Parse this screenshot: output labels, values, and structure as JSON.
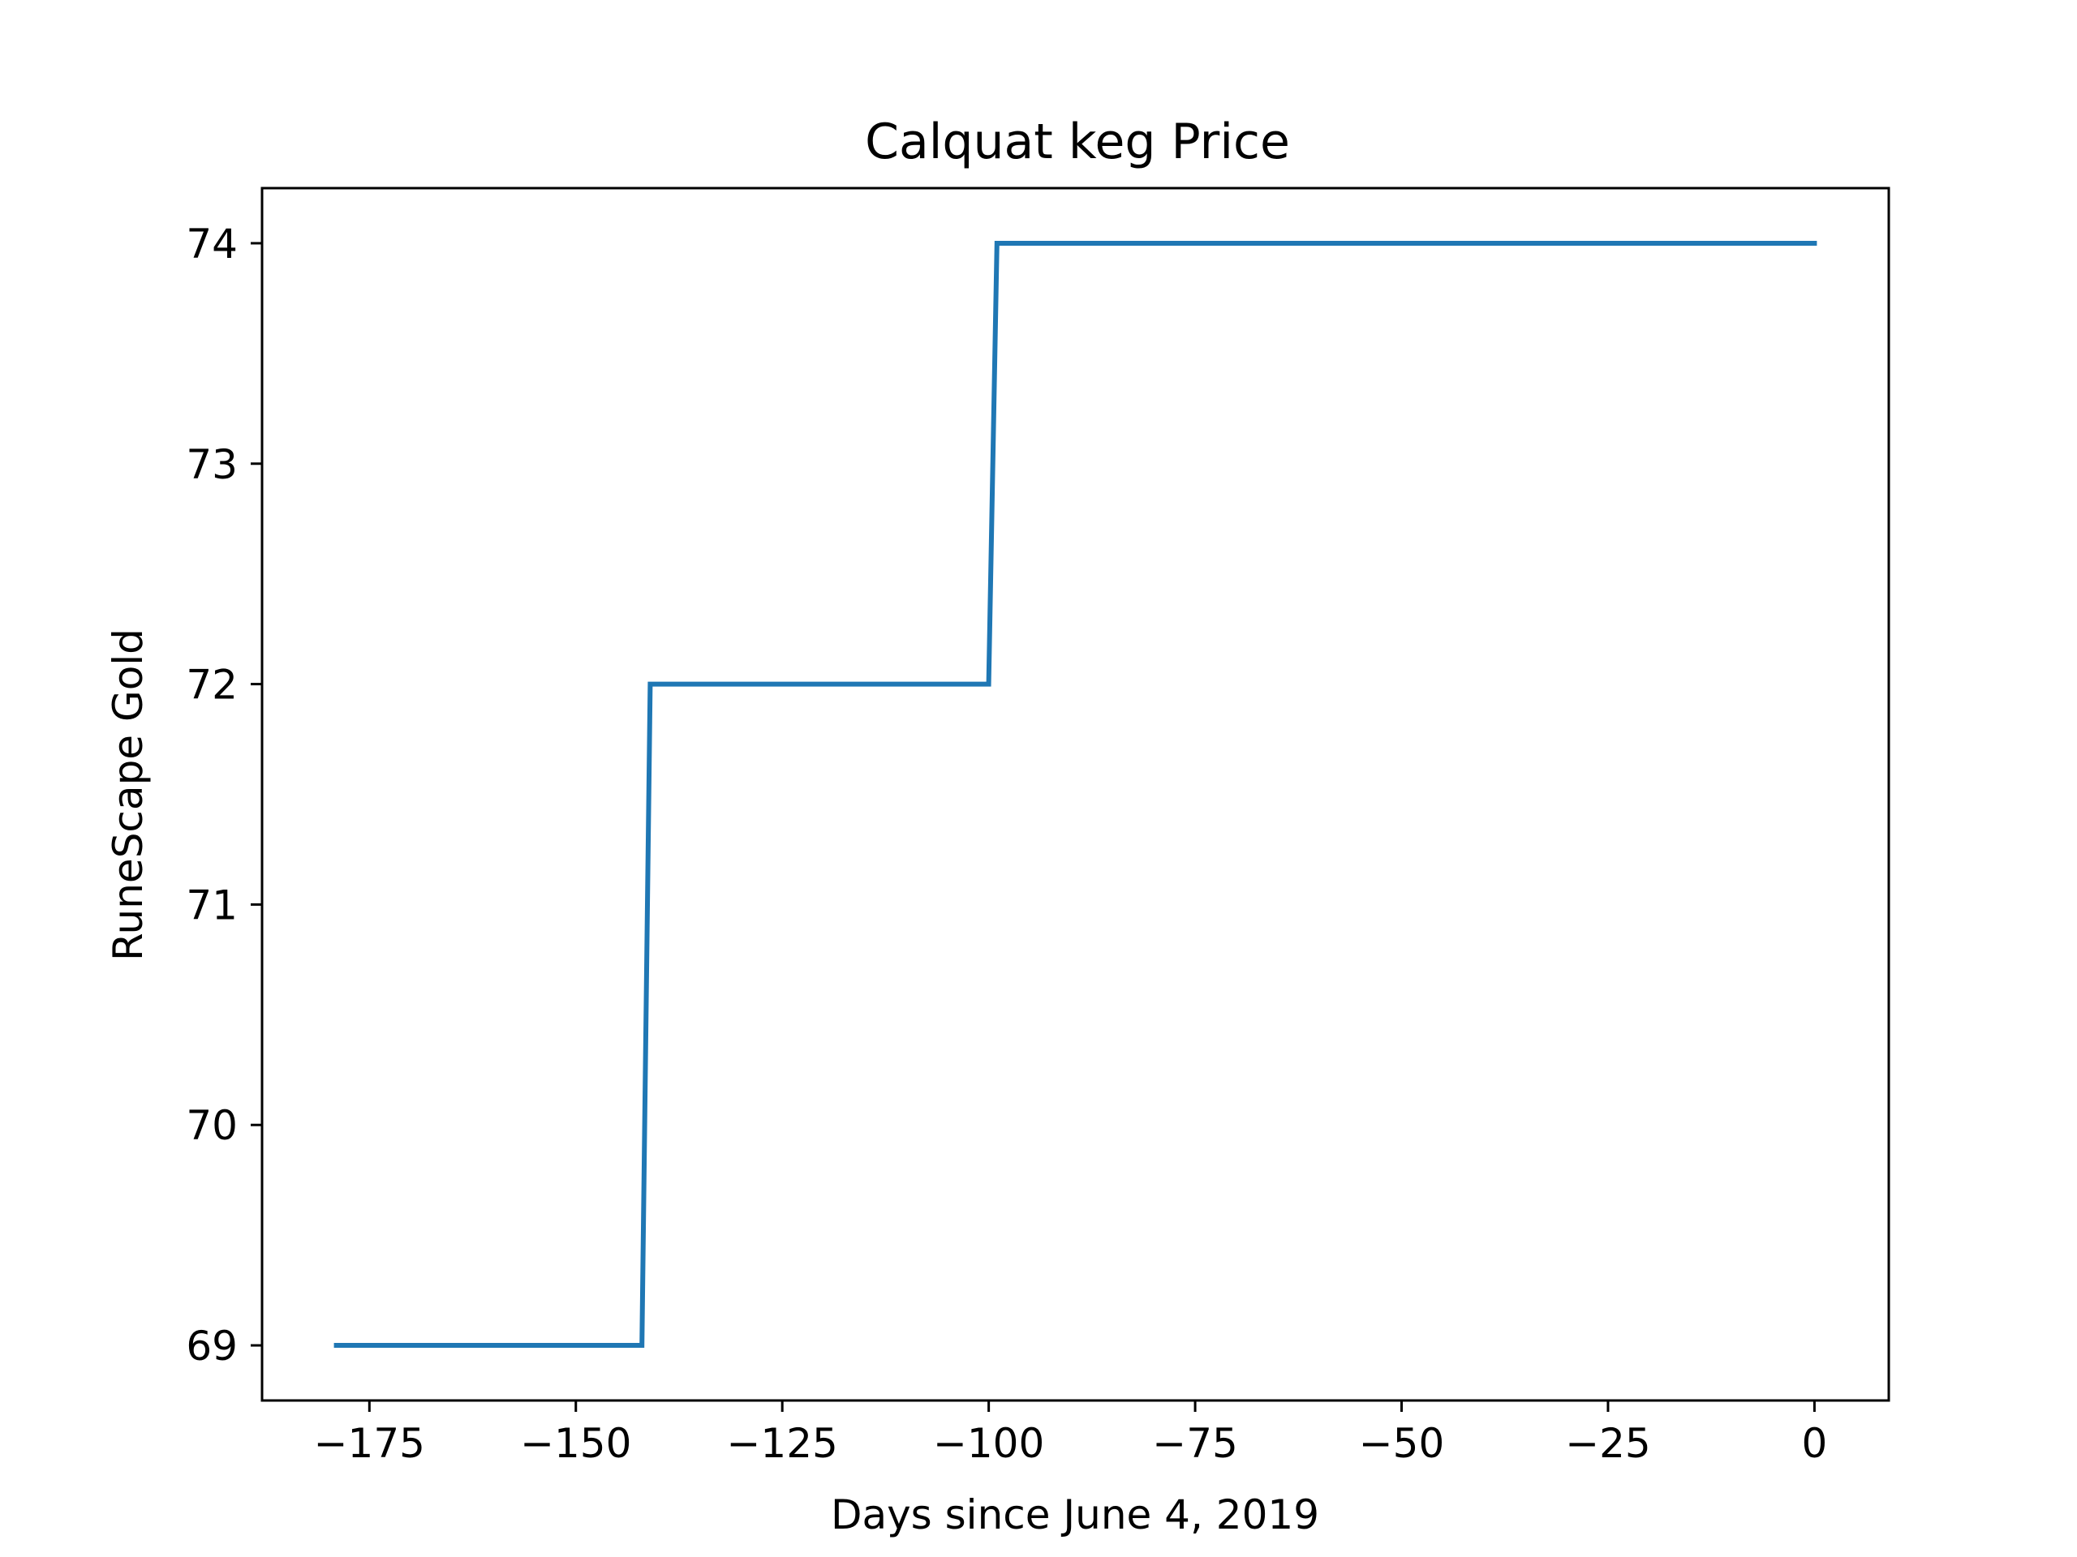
{
  "chart_data": {
    "type": "line",
    "title": "Calquat keg Price",
    "xlabel": "Days since June 4, 2019",
    "ylabel": "RuneScape Gold",
    "xlim": [
      -188,
      9
    ],
    "ylim": [
      68.75,
      74.25
    ],
    "xticks": [
      -175,
      -150,
      -125,
      -100,
      -75,
      -50,
      -25,
      0
    ],
    "xtick_labels": [
      "−175",
      "−150",
      "−125",
      "−100",
      "−75",
      "−50",
      "−25",
      "0"
    ],
    "yticks": [
      69,
      70,
      71,
      72,
      73,
      74
    ],
    "ytick_labels": [
      "69",
      "70",
      "71",
      "72",
      "73",
      "74"
    ],
    "grid": false,
    "series": [
      {
        "color": "#1f77b4",
        "x": [
          -179,
          -142,
          -141,
          -100,
          -99,
          0
        ],
        "y": [
          69,
          69,
          72,
          72,
          74,
          74
        ]
      }
    ]
  }
}
